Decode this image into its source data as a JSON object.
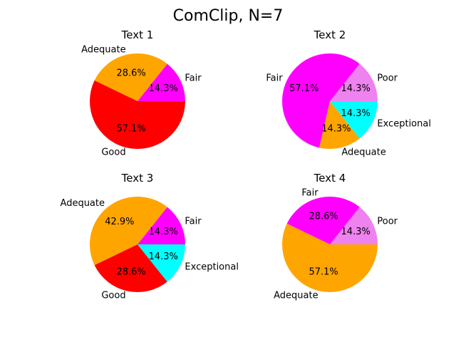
{
  "figure": {
    "title": "ComClip, N=7"
  },
  "chart_data": [
    {
      "type": "pie",
      "title": "Text 1",
      "slices": [
        {
          "label": "Fair",
          "value": 1,
          "percent": "14.3%",
          "color": "#FF00FF"
        },
        {
          "label": "Adequate",
          "value": 2,
          "percent": "28.6%",
          "color": "#FFA500"
        },
        {
          "label": "Good",
          "value": 4,
          "percent": "57.1%",
          "color": "#FF0000"
        }
      ]
    },
    {
      "type": "pie",
      "title": "Text 2",
      "slices": [
        {
          "label": "Poor",
          "value": 1,
          "percent": "14.3%",
          "color": "#EE82EE"
        },
        {
          "label": "Fair",
          "value": 4,
          "percent": "57.1%",
          "color": "#FF00FF"
        },
        {
          "label": "Adequate",
          "value": 1,
          "percent": "14.3%",
          "color": "#FFA500"
        },
        {
          "label": "Exceptional",
          "value": 1,
          "percent": "14.3%",
          "color": "#00FFFF"
        }
      ]
    },
    {
      "type": "pie",
      "title": "Text 3",
      "slices": [
        {
          "label": "Fair",
          "value": 1,
          "percent": "14.3%",
          "color": "#FF00FF"
        },
        {
          "label": "Adequate",
          "value": 3,
          "percent": "42.9%",
          "color": "#FFA500"
        },
        {
          "label": "Good",
          "value": 2,
          "percent": "28.6%",
          "color": "#FF0000"
        },
        {
          "label": "Exceptional",
          "value": 1,
          "percent": "14.3%",
          "color": "#00FFFF"
        }
      ]
    },
    {
      "type": "pie",
      "title": "Text 4",
      "slices": [
        {
          "label": "Poor",
          "value": 1,
          "percent": "14.3%",
          "color": "#EE82EE"
        },
        {
          "label": "Fair",
          "value": 2,
          "percent": "28.6%",
          "color": "#FF00FF"
        },
        {
          "label": "Adequate",
          "value": 4,
          "percent": "57.1%",
          "color": "#FFA500"
        }
      ]
    }
  ]
}
